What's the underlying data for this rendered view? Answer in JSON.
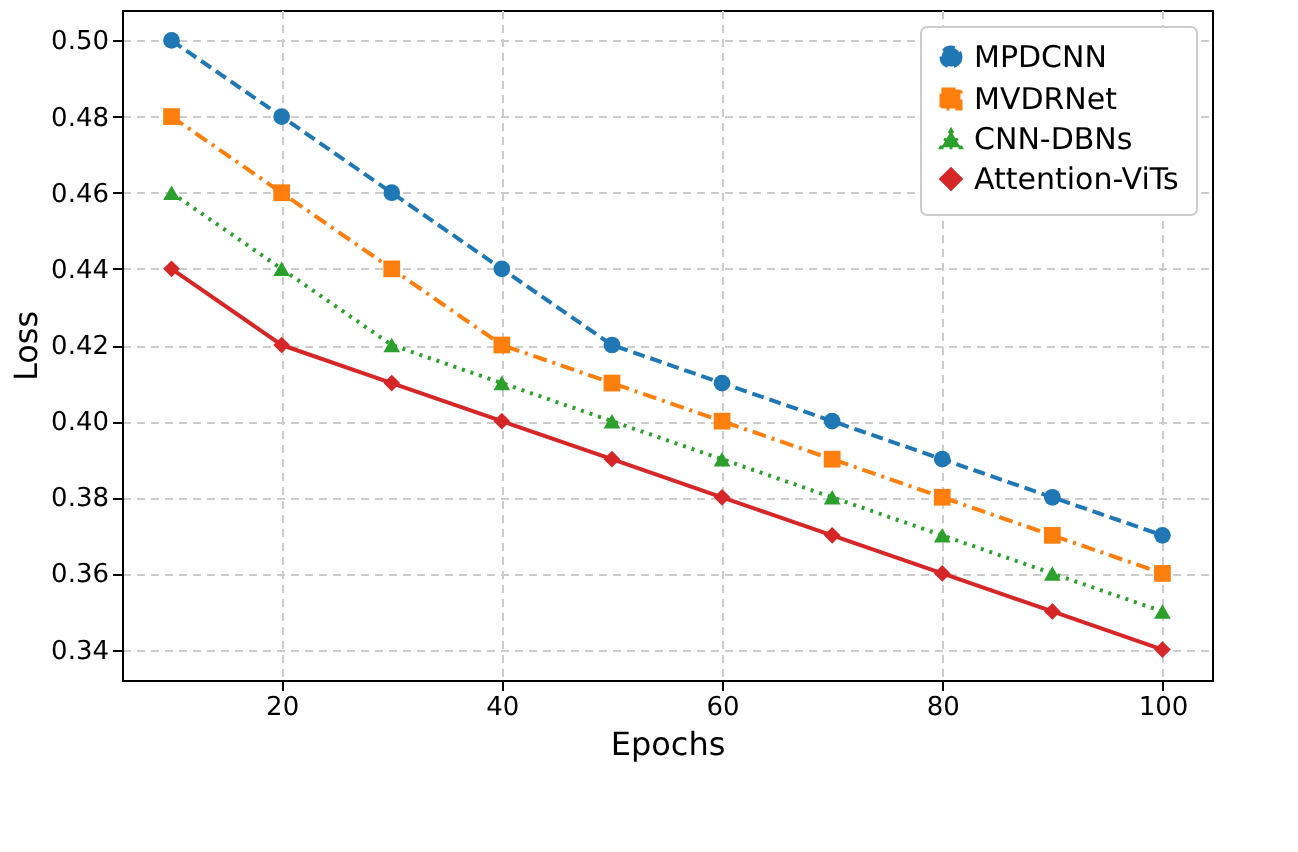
{
  "chart_data": {
    "type": "line",
    "xlabel": "Epochs",
    "ylabel": "Loss",
    "x": [
      10,
      20,
      30,
      40,
      50,
      60,
      70,
      80,
      90,
      100
    ],
    "series": [
      {
        "name": "MPDCNN",
        "color": "#1f77b4",
        "marker": "circle",
        "line_style": "dashed",
        "values": [
          0.5,
          0.48,
          0.46,
          0.44,
          0.42,
          0.41,
          0.4,
          0.39,
          0.38,
          0.37
        ]
      },
      {
        "name": "MVDRNet",
        "color": "#ff7f0e",
        "marker": "square",
        "line_style": "dashdot",
        "values": [
          0.48,
          0.46,
          0.44,
          0.42,
          0.41,
          0.4,
          0.39,
          0.38,
          0.37,
          0.36
        ]
      },
      {
        "name": "CNN-DBNs",
        "color": "#2ca02c",
        "marker": "triangle",
        "line_style": "dotted",
        "values": [
          0.46,
          0.44,
          0.42,
          0.41,
          0.4,
          0.39,
          0.38,
          0.37,
          0.36,
          0.35
        ]
      },
      {
        "name": "Attention-ViTs",
        "color": "#d62728",
        "marker": "diamond",
        "line_style": "solid",
        "values": [
          0.44,
          0.42,
          0.41,
          0.4,
          0.39,
          0.38,
          0.37,
          0.36,
          0.35,
          0.34
        ]
      }
    ],
    "xlim": [
      5.5,
      104.5
    ],
    "xticks": [
      20,
      40,
      60,
      80,
      100
    ],
    "ylim": [
      0.332,
      0.508
    ],
    "yticks": [
      {
        "value": 0.34,
        "label": "0.34"
      },
      {
        "value": 0.36,
        "label": "0.36"
      },
      {
        "value": 0.38,
        "label": "0.38"
      },
      {
        "value": 0.4,
        "label": "0.40"
      },
      {
        "value": 0.42,
        "label": "0.42"
      },
      {
        "value": 0.44,
        "label": "0.44"
      },
      {
        "value": 0.46,
        "label": "0.46"
      },
      {
        "value": 0.48,
        "label": "0.48"
      },
      {
        "value": 0.5,
        "label": "0.50"
      }
    ],
    "grid": true,
    "legend": "top right"
  }
}
